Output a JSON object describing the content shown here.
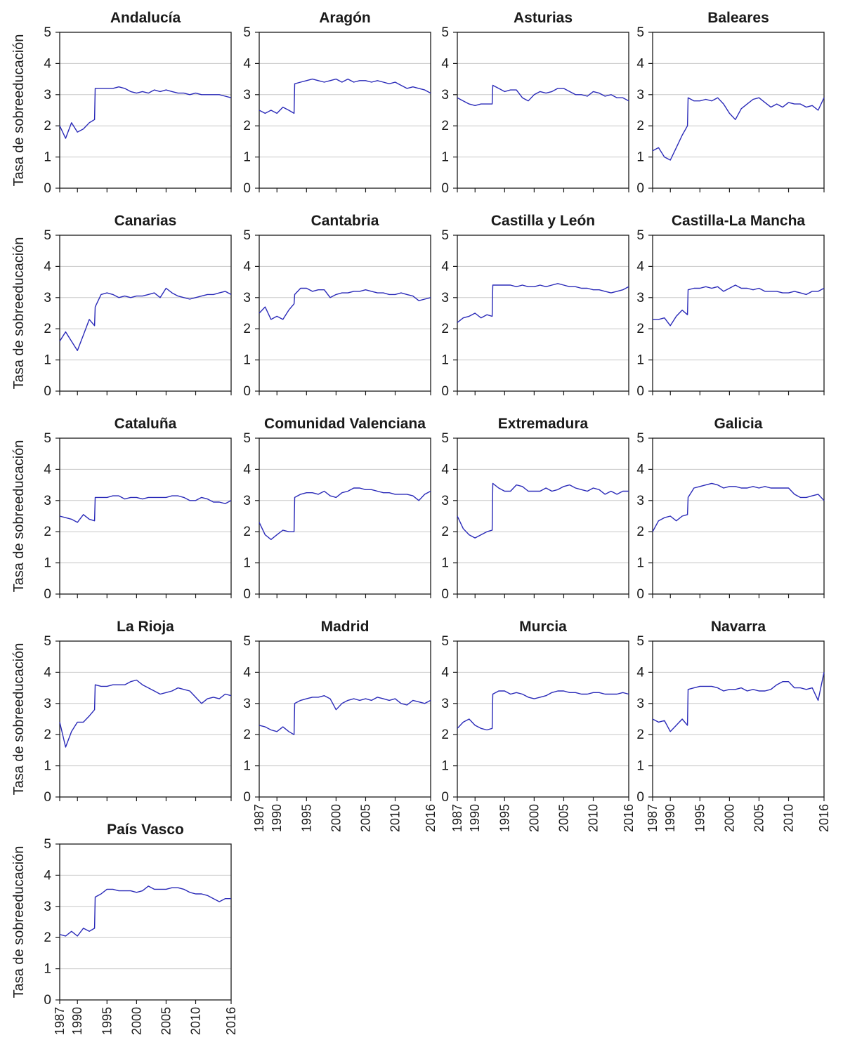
{
  "chart_data": {
    "type": "line",
    "layout": "small-multiples",
    "ylabel": "Tasa de sobreeducación",
    "ylim": [
      0,
      5
    ],
    "yticks": [
      0,
      1,
      2,
      3,
      4,
      5
    ],
    "xlim": [
      1987,
      2016
    ],
    "xticks": [
      1987,
      1990,
      1995,
      2000,
      2005,
      2010,
      2016
    ],
    "grid": "horizontal",
    "color": "#2a2ab8",
    "panels": [
      {
        "title": "Andalucía",
        "x": [
          1987,
          1988,
          1989,
          1990,
          1991,
          1992,
          1992.9,
          1993,
          1994,
          1995,
          1996,
          1997,
          1998,
          1999,
          2000,
          2001,
          2002,
          2003,
          2004,
          2005,
          2006,
          2007,
          2008,
          2009,
          2010,
          2011,
          2012,
          2013,
          2014,
          2015,
          2016
        ],
        "y": [
          2.0,
          1.6,
          2.1,
          1.8,
          1.9,
          2.1,
          2.2,
          3.2,
          3.2,
          3.2,
          3.2,
          3.25,
          3.2,
          3.1,
          3.05,
          3.1,
          3.05,
          3.15,
          3.1,
          3.15,
          3.1,
          3.05,
          3.05,
          3.0,
          3.05,
          3.0,
          3.0,
          3.0,
          3.0,
          2.95,
          2.9
        ]
      },
      {
        "title": "Aragón",
        "x": [
          1987,
          1988,
          1989,
          1990,
          1991,
          1992,
          1992.9,
          1993,
          1994,
          1995,
          1996,
          1997,
          1998,
          1999,
          2000,
          2001,
          2002,
          2003,
          2004,
          2005,
          2006,
          2007,
          2008,
          2009,
          2010,
          2011,
          2012,
          2013,
          2014,
          2015,
          2016
        ],
        "y": [
          2.5,
          2.4,
          2.5,
          2.4,
          2.6,
          2.5,
          2.4,
          3.35,
          3.4,
          3.45,
          3.5,
          3.45,
          3.4,
          3.45,
          3.5,
          3.4,
          3.5,
          3.4,
          3.45,
          3.45,
          3.4,
          3.45,
          3.4,
          3.35,
          3.4,
          3.3,
          3.2,
          3.25,
          3.2,
          3.15,
          3.05
        ]
      },
      {
        "title": "Asturias",
        "x": [
          1987,
          1988,
          1989,
          1990,
          1991,
          1992,
          1992.9,
          1993,
          1994,
          1995,
          1996,
          1997,
          1998,
          1999,
          2000,
          2001,
          2002,
          2003,
          2004,
          2005,
          2006,
          2007,
          2008,
          2009,
          2010,
          2011,
          2012,
          2013,
          2014,
          2015,
          2016
        ],
        "y": [
          2.9,
          2.8,
          2.7,
          2.65,
          2.7,
          2.7,
          2.7,
          3.3,
          3.2,
          3.1,
          3.15,
          3.15,
          2.9,
          2.8,
          3.0,
          3.1,
          3.05,
          3.1,
          3.2,
          3.2,
          3.1,
          3.0,
          3.0,
          2.95,
          3.1,
          3.05,
          2.95,
          3.0,
          2.9,
          2.9,
          2.8
        ]
      },
      {
        "title": "Baleares",
        "x": [
          1987,
          1988,
          1989,
          1990,
          1991,
          1992,
          1992.9,
          1993,
          1994,
          1995,
          1996,
          1997,
          1998,
          1999,
          2000,
          2001,
          2002,
          2003,
          2004,
          2005,
          2006,
          2007,
          2008,
          2009,
          2010,
          2011,
          2012,
          2013,
          2014,
          2015,
          2016
        ],
        "y": [
          1.2,
          1.3,
          1.0,
          0.9,
          1.3,
          1.7,
          2.0,
          2.9,
          2.8,
          2.8,
          2.85,
          2.8,
          2.9,
          2.7,
          2.4,
          2.2,
          2.55,
          2.7,
          2.85,
          2.9,
          2.75,
          2.6,
          2.7,
          2.6,
          2.75,
          2.7,
          2.7,
          2.6,
          2.65,
          2.5,
          2.9
        ]
      },
      {
        "title": "Canarias",
        "x": [
          1987,
          1988,
          1989,
          1990,
          1991,
          1992,
          1992.9,
          1993,
          1994,
          1995,
          1996,
          1997,
          1998,
          1999,
          2000,
          2001,
          2002,
          2003,
          2004,
          2005,
          2006,
          2007,
          2008,
          2009,
          2010,
          2011,
          2012,
          2013,
          2014,
          2015,
          2016
        ],
        "y": [
          1.6,
          1.9,
          1.6,
          1.3,
          1.8,
          2.3,
          2.1,
          2.7,
          3.1,
          3.15,
          3.1,
          3.0,
          3.05,
          3.0,
          3.05,
          3.05,
          3.1,
          3.15,
          3.0,
          3.3,
          3.15,
          3.05,
          3.0,
          2.95,
          3.0,
          3.05,
          3.1,
          3.1,
          3.15,
          3.2,
          3.1
        ]
      },
      {
        "title": "Cantabria",
        "x": [
          1987,
          1988,
          1989,
          1990,
          1991,
          1992,
          1992.9,
          1993,
          1994,
          1995,
          1996,
          1997,
          1998,
          1999,
          2000,
          2001,
          2002,
          2003,
          2004,
          2005,
          2006,
          2007,
          2008,
          2009,
          2010,
          2011,
          2012,
          2013,
          2014,
          2015,
          2016
        ],
        "y": [
          2.5,
          2.7,
          2.3,
          2.4,
          2.3,
          2.6,
          2.8,
          3.1,
          3.3,
          3.3,
          3.2,
          3.25,
          3.25,
          3.0,
          3.1,
          3.15,
          3.15,
          3.2,
          3.2,
          3.25,
          3.2,
          3.15,
          3.15,
          3.1,
          3.1,
          3.15,
          3.1,
          3.05,
          2.9,
          2.95,
          3.0
        ]
      },
      {
        "title": "Castilla y León",
        "x": [
          1987,
          1988,
          1989,
          1990,
          1991,
          1992,
          1992.9,
          1993,
          1994,
          1995,
          1996,
          1997,
          1998,
          1999,
          2000,
          2001,
          2002,
          2003,
          2004,
          2005,
          2006,
          2007,
          2008,
          2009,
          2010,
          2011,
          2012,
          2013,
          2014,
          2015,
          2016
        ],
        "y": [
          2.2,
          2.35,
          2.4,
          2.5,
          2.35,
          2.45,
          2.4,
          3.4,
          3.4,
          3.4,
          3.4,
          3.35,
          3.4,
          3.35,
          3.35,
          3.4,
          3.35,
          3.4,
          3.45,
          3.4,
          3.35,
          3.35,
          3.3,
          3.3,
          3.25,
          3.25,
          3.2,
          3.15,
          3.2,
          3.25,
          3.35
        ]
      },
      {
        "title": "Castilla-La Mancha",
        "x": [
          1987,
          1988,
          1989,
          1990,
          1991,
          1992,
          1992.9,
          1993,
          1994,
          1995,
          1996,
          1997,
          1998,
          1999,
          2000,
          2001,
          2002,
          2003,
          2004,
          2005,
          2006,
          2007,
          2008,
          2009,
          2010,
          2011,
          2012,
          2013,
          2014,
          2015,
          2016
        ],
        "y": [
          2.3,
          2.3,
          2.35,
          2.1,
          2.4,
          2.6,
          2.45,
          3.25,
          3.3,
          3.3,
          3.35,
          3.3,
          3.35,
          3.2,
          3.3,
          3.4,
          3.3,
          3.3,
          3.25,
          3.3,
          3.2,
          3.2,
          3.2,
          3.15,
          3.15,
          3.2,
          3.15,
          3.1,
          3.2,
          3.2,
          3.3
        ]
      },
      {
        "title": "Cataluña",
        "x": [
          1987,
          1988,
          1989,
          1990,
          1991,
          1992,
          1992.9,
          1993,
          1994,
          1995,
          1996,
          1997,
          1998,
          1999,
          2000,
          2001,
          2002,
          2003,
          2004,
          2005,
          2006,
          2007,
          2008,
          2009,
          2010,
          2011,
          2012,
          2013,
          2014,
          2015,
          2016
        ],
        "y": [
          2.5,
          2.45,
          2.4,
          2.3,
          2.55,
          2.4,
          2.35,
          3.1,
          3.1,
          3.1,
          3.15,
          3.15,
          3.05,
          3.1,
          3.1,
          3.05,
          3.1,
          3.1,
          3.1,
          3.1,
          3.15,
          3.15,
          3.1,
          3.0,
          3.0,
          3.1,
          3.05,
          2.95,
          2.95,
          2.9,
          3.0
        ]
      },
      {
        "title": "Comunidad Valenciana",
        "x": [
          1987,
          1988,
          1989,
          1990,
          1991,
          1992,
          1992.9,
          1993,
          1994,
          1995,
          1996,
          1997,
          1998,
          1999,
          2000,
          2001,
          2002,
          2003,
          2004,
          2005,
          2006,
          2007,
          2008,
          2009,
          2010,
          2011,
          2012,
          2013,
          2014,
          2015,
          2016
        ],
        "y": [
          2.3,
          1.9,
          1.75,
          1.9,
          2.05,
          2.0,
          2.0,
          3.1,
          3.2,
          3.25,
          3.25,
          3.2,
          3.3,
          3.15,
          3.1,
          3.25,
          3.3,
          3.4,
          3.4,
          3.35,
          3.35,
          3.3,
          3.25,
          3.25,
          3.2,
          3.2,
          3.2,
          3.15,
          3.0,
          3.2,
          3.3
        ]
      },
      {
        "title": "Extremadura",
        "x": [
          1987,
          1988,
          1989,
          1990,
          1991,
          1992,
          1992.9,
          1993,
          1994,
          1995,
          1996,
          1997,
          1998,
          1999,
          2000,
          2001,
          2002,
          2003,
          2004,
          2005,
          2006,
          2007,
          2008,
          2009,
          2010,
          2011,
          2012,
          2013,
          2014,
          2015,
          2016
        ],
        "y": [
          2.5,
          2.1,
          1.9,
          1.8,
          1.9,
          2.0,
          2.05,
          3.55,
          3.4,
          3.3,
          3.3,
          3.5,
          3.45,
          3.3,
          3.3,
          3.3,
          3.4,
          3.3,
          3.35,
          3.45,
          3.5,
          3.4,
          3.35,
          3.3,
          3.4,
          3.35,
          3.2,
          3.3,
          3.2,
          3.3,
          3.3
        ]
      },
      {
        "title": "Galicia",
        "x": [
          1987,
          1988,
          1989,
          1990,
          1991,
          1992,
          1992.9,
          1993,
          1994,
          1995,
          1996,
          1997,
          1998,
          1999,
          2000,
          2001,
          2002,
          2003,
          2004,
          2005,
          2006,
          2007,
          2008,
          2009,
          2010,
          2011,
          2012,
          2013,
          2014,
          2015,
          2016
        ],
        "y": [
          2.0,
          2.35,
          2.45,
          2.5,
          2.35,
          2.5,
          2.55,
          3.1,
          3.4,
          3.45,
          3.5,
          3.55,
          3.5,
          3.4,
          3.45,
          3.45,
          3.4,
          3.4,
          3.45,
          3.4,
          3.45,
          3.4,
          3.4,
          3.4,
          3.4,
          3.2,
          3.1,
          3.1,
          3.15,
          3.2,
          3.0
        ]
      },
      {
        "title": "La Rioja",
        "x": [
          1987,
          1988,
          1989,
          1990,
          1991,
          1992,
          1992.9,
          1993,
          1994,
          1995,
          1996,
          1997,
          1998,
          1999,
          2000,
          2001,
          2002,
          2003,
          2004,
          2005,
          2006,
          2007,
          2008,
          2009,
          2010,
          2011,
          2012,
          2013,
          2014,
          2015,
          2016
        ],
        "y": [
          2.4,
          1.6,
          2.1,
          2.4,
          2.4,
          2.6,
          2.8,
          3.6,
          3.55,
          3.55,
          3.6,
          3.6,
          3.6,
          3.7,
          3.75,
          3.6,
          3.5,
          3.4,
          3.3,
          3.35,
          3.4,
          3.5,
          3.45,
          3.4,
          3.2,
          3.0,
          3.15,
          3.2,
          3.15,
          3.3,
          3.25
        ]
      },
      {
        "title": "Madrid",
        "x": [
          1987,
          1988,
          1989,
          1990,
          1991,
          1992,
          1992.9,
          1993,
          1994,
          1995,
          1996,
          1997,
          1998,
          1999,
          2000,
          2001,
          2002,
          2003,
          2004,
          2005,
          2006,
          2007,
          2008,
          2009,
          2010,
          2011,
          2012,
          2013,
          2014,
          2015,
          2016
        ],
        "y": [
          2.3,
          2.25,
          2.15,
          2.1,
          2.25,
          2.1,
          2.0,
          3.0,
          3.1,
          3.15,
          3.2,
          3.2,
          3.25,
          3.15,
          2.8,
          3.0,
          3.1,
          3.15,
          3.1,
          3.15,
          3.1,
          3.2,
          3.15,
          3.1,
          3.15,
          3.0,
          2.95,
          3.1,
          3.05,
          3.0,
          3.1
        ]
      },
      {
        "title": "Murcia",
        "x": [
          1987,
          1988,
          1989,
          1990,
          1991,
          1992,
          1992.9,
          1993,
          1994,
          1995,
          1996,
          1997,
          1998,
          1999,
          2000,
          2001,
          2002,
          2003,
          2004,
          2005,
          2006,
          2007,
          2008,
          2009,
          2010,
          2011,
          2012,
          2013,
          2014,
          2015,
          2016
        ],
        "y": [
          2.2,
          2.4,
          2.5,
          2.3,
          2.2,
          2.15,
          2.2,
          3.3,
          3.4,
          3.4,
          3.3,
          3.35,
          3.3,
          3.2,
          3.15,
          3.2,
          3.25,
          3.35,
          3.4,
          3.4,
          3.35,
          3.35,
          3.3,
          3.3,
          3.35,
          3.35,
          3.3,
          3.3,
          3.3,
          3.35,
          3.3
        ]
      },
      {
        "title": "Navarra",
        "x": [
          1987,
          1988,
          1989,
          1990,
          1991,
          1992,
          1992.9,
          1993,
          1994,
          1995,
          1996,
          1997,
          1998,
          1999,
          2000,
          2001,
          2002,
          2003,
          2004,
          2005,
          2006,
          2007,
          2008,
          2009,
          2010,
          2011,
          2012,
          2013,
          2014,
          2015,
          2016
        ],
        "y": [
          2.5,
          2.4,
          2.45,
          2.1,
          2.3,
          2.5,
          2.3,
          3.45,
          3.5,
          3.55,
          3.55,
          3.55,
          3.5,
          3.4,
          3.45,
          3.45,
          3.5,
          3.4,
          3.45,
          3.4,
          3.4,
          3.45,
          3.6,
          3.7,
          3.7,
          3.5,
          3.5,
          3.45,
          3.5,
          3.1,
          4.0
        ]
      },
      {
        "title": "País Vasco",
        "x": [
          1987,
          1988,
          1989,
          1990,
          1991,
          1992,
          1992.9,
          1993,
          1994,
          1995,
          1996,
          1997,
          1998,
          1999,
          2000,
          2001,
          2002,
          2003,
          2004,
          2005,
          2006,
          2007,
          2008,
          2009,
          2010,
          2011,
          2012,
          2013,
          2014,
          2015,
          2016
        ],
        "y": [
          2.1,
          2.05,
          2.2,
          2.05,
          2.3,
          2.2,
          2.3,
          3.3,
          3.4,
          3.55,
          3.55,
          3.5,
          3.5,
          3.5,
          3.45,
          3.5,
          3.65,
          3.55,
          3.55,
          3.55,
          3.6,
          3.6,
          3.55,
          3.45,
          3.4,
          3.4,
          3.35,
          3.25,
          3.15,
          3.25,
          3.25
        ]
      }
    ]
  }
}
